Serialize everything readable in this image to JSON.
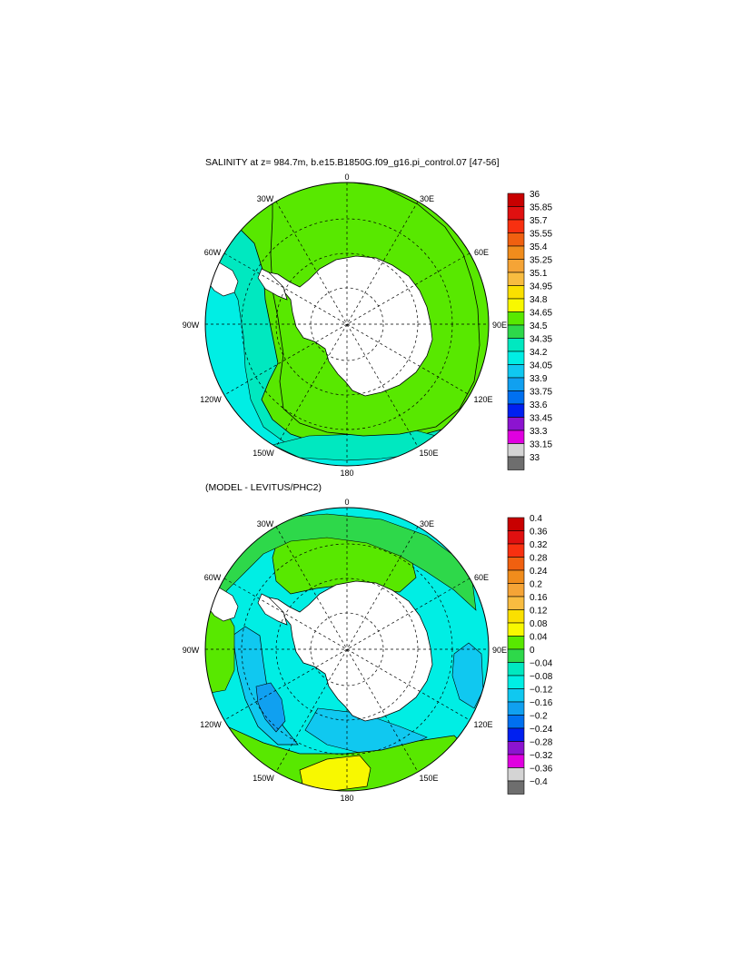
{
  "top_panel": {
    "title": "SALINITY at z= 984.7m, b.e15.B1850G.f09_g16.pi_control.07 [47-56]",
    "lon_labels": [
      "0",
      "30E",
      "60E",
      "90E",
      "120E",
      "150E",
      "180",
      "150W",
      "120W",
      "90W",
      "60W",
      "30W"
    ],
    "colorbar": {
      "labels": [
        "36",
        "35.85",
        "35.7",
        "35.55",
        "35.4",
        "35.25",
        "35.1",
        "34.95",
        "34.8",
        "34.65",
        "34.5",
        "34.35",
        "34.2",
        "34.05",
        "33.9",
        "33.75",
        "33.6",
        "33.45",
        "33.3",
        "33.15",
        "33"
      ],
      "colors": [
        "#c80000",
        "#e01010",
        "#f83010",
        "#f06010",
        "#f08c1c",
        "#f5a436",
        "#f8bc40",
        "#fae000",
        "#f8f800",
        "#58e800",
        "#2ed84a",
        "#00e8c0",
        "#00eee4",
        "#10c8f0",
        "#10a0f0",
        "#0070f0",
        "#0020f0",
        "#8c14d0",
        "#e000e0",
        "#d4d4d4",
        "#6e6e6e"
      ]
    }
  },
  "bottom_panel": {
    "title": "(MODEL - LEVITUS/PHC2)",
    "lon_labels": [
      "0",
      "30E",
      "60E",
      "90E",
      "120E",
      "150E",
      "180",
      "150W",
      "120W",
      "90W",
      "60W",
      "30W"
    ],
    "colorbar": {
      "labels": [
        "0.4",
        "0.36",
        "0.32",
        "0.28",
        "0.24",
        "0.2",
        "0.16",
        "0.12",
        "0.08",
        "0.04",
        "0",
        "−0.04",
        "−0.08",
        "−0.12",
        "−0.16",
        "−0.2",
        "−0.24",
        "−0.28",
        "−0.32",
        "−0.36",
        "−0.4"
      ],
      "colors": [
        "#c80000",
        "#e01010",
        "#f83010",
        "#f06010",
        "#f08c1c",
        "#f5a436",
        "#f8bc40",
        "#fae000",
        "#f8f800",
        "#58e800",
        "#2ed84a",
        "#00e8c0",
        "#00eee4",
        "#10c8f0",
        "#10a0f0",
        "#0070f0",
        "#0020f0",
        "#8c14d0",
        "#e000e0",
        "#d4d4d4",
        "#6e6e6e"
      ]
    }
  },
  "map_colors": {
    "land": "#ffffff",
    "salinity_background": "#58e800",
    "salinity_fresh": "#00e8c0",
    "salinity_fresher": "#00eee4",
    "anomaly_background": "#00eee4",
    "anomaly_positive": "#58e800",
    "anomaly_zero": "#2ed84a",
    "anomaly_negative": "#10c8f0",
    "anomaly_more_negative": "#10a0f0",
    "anomaly_high": "#f8f800"
  }
}
